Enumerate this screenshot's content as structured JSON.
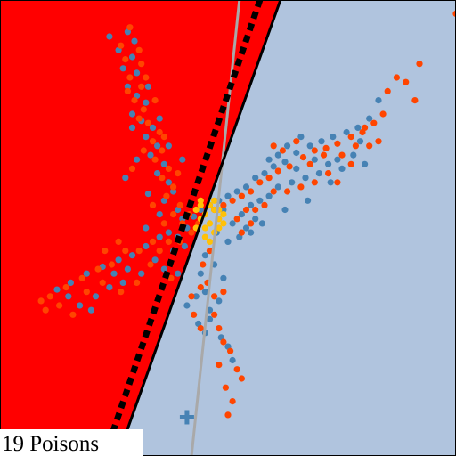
{
  "chart_data": {
    "type": "scatter",
    "title": "",
    "xlabel": "",
    "ylabel": "",
    "xlim": [
      -1,
      1
    ],
    "ylim": [
      -1,
      1
    ],
    "grid": false,
    "legend": "none",
    "annotation": "19 Poisons",
    "colors": {
      "region_left": "#ff0000",
      "region_right": "#b0c4de",
      "class_a": "#4682b4",
      "class_b": "#ff4500",
      "poison": "#ffc107",
      "boundary": "#000000",
      "dashed_boundary": "#000000",
      "reference_line": "#a9a9a9",
      "target_marker": "#4682b4"
    },
    "decision_boundary": {
      "p1": [
        -0.44,
        -0.88
      ],
      "p2": [
        0.23,
        1.0
      ]
    },
    "dashed_boundary": {
      "p1": [
        -0.5,
        -0.88
      ],
      "p2": [
        0.14,
        1.0
      ]
    },
    "reference_line": {
      "p1": [
        -0.16,
        -1.0
      ],
      "p2": [
        0.05,
        1.0
      ]
    },
    "target_point": {
      "x": -0.18,
      "y": -0.83,
      "marker": "plus"
    },
    "series": [
      {
        "name": "",
        "marker": "circle",
        "points": [
          [
            -0.52,
            0.84
          ],
          [
            -0.44,
            0.86
          ],
          [
            -0.41,
            0.82
          ],
          [
            -0.48,
            0.78
          ],
          [
            -0.42,
            0.75
          ],
          [
            -0.46,
            0.7
          ],
          [
            -0.4,
            0.68
          ],
          [
            -0.44,
            0.62
          ],
          [
            -0.4,
            0.58
          ],
          [
            -0.36,
            0.55
          ],
          [
            -0.42,
            0.5
          ],
          [
            -0.38,
            0.47
          ],
          [
            -0.33,
            0.44
          ],
          [
            -0.36,
            0.4
          ],
          [
            -0.31,
            0.36
          ],
          [
            -0.34,
            0.32
          ],
          [
            -0.28,
            0.28
          ],
          [
            -0.31,
            0.24
          ],
          [
            -0.26,
            0.2
          ],
          [
            -0.24,
            0.16
          ],
          [
            -0.28,
            0.12
          ],
          [
            -0.22,
            0.08
          ],
          [
            -0.2,
            0.04
          ],
          [
            -0.18,
            0.0
          ],
          [
            -0.22,
            -0.04
          ],
          [
            -0.19,
            -0.08
          ],
          [
            -0.24,
            -0.1
          ],
          [
            -0.3,
            -0.04
          ],
          [
            -0.36,
            -0.08
          ],
          [
            -0.42,
            -0.12
          ],
          [
            -0.48,
            -0.14
          ],
          [
            -0.55,
            -0.17
          ],
          [
            -0.62,
            -0.2
          ],
          [
            -0.69,
            -0.24
          ],
          [
            -0.75,
            -0.27
          ],
          [
            -0.36,
            0.0
          ],
          [
            -0.32,
            -0.14
          ],
          [
            -0.28,
            -0.18
          ],
          [
            -0.22,
            -0.2
          ],
          [
            -0.38,
            -0.2
          ],
          [
            -0.46,
            -0.24
          ],
          [
            -0.52,
            -0.26
          ],
          [
            -0.58,
            -0.3
          ],
          [
            -0.5,
            -0.2
          ],
          [
            -0.44,
            -0.18
          ],
          [
            -0.15,
            0.05
          ],
          [
            -0.12,
            0.08
          ],
          [
            -0.08,
            0.1
          ],
          [
            -0.04,
            0.12
          ],
          [
            0.0,
            0.14
          ],
          [
            0.04,
            0.16
          ],
          [
            0.08,
            0.18
          ],
          [
            0.12,
            0.22
          ],
          [
            0.16,
            0.24
          ],
          [
            0.2,
            0.27
          ],
          [
            0.25,
            0.29
          ],
          [
            0.3,
            0.33
          ],
          [
            0.36,
            0.36
          ],
          [
            0.41,
            0.38
          ],
          [
            0.46,
            0.4
          ],
          [
            0.52,
            0.42
          ],
          [
            0.57,
            0.44
          ],
          [
            0.62,
            0.48
          ],
          [
            0.66,
            0.56
          ],
          [
            0.02,
            0.02
          ],
          [
            0.06,
            0.06
          ],
          [
            0.1,
            0.1
          ],
          [
            0.14,
            0.12
          ],
          [
            0.18,
            0.14
          ],
          [
            0.22,
            0.18
          ],
          [
            0.28,
            0.2
          ],
          [
            0.34,
            0.22
          ],
          [
            0.4,
            0.24
          ],
          [
            0.48,
            0.3
          ],
          [
            0.55,
            0.32
          ],
          [
            0.6,
            0.28
          ],
          [
            0.45,
            0.2
          ],
          [
            0.35,
            0.12
          ],
          [
            0.25,
            0.08
          ],
          [
            0.15,
            0.02
          ],
          [
            0.1,
            -0.02
          ],
          [
            0.05,
            -0.04
          ],
          [
            0.0,
            -0.06
          ],
          [
            -0.05,
            -0.02
          ],
          [
            -0.1,
            -0.12
          ],
          [
            -0.12,
            -0.2
          ],
          [
            -0.1,
            -0.28
          ],
          [
            -0.08,
            -0.36
          ],
          [
            -0.14,
            -0.3
          ],
          [
            -0.18,
            -0.34
          ],
          [
            -0.13,
            -0.42
          ],
          [
            -0.1,
            -0.46
          ],
          [
            -0.08,
            -0.4
          ],
          [
            -0.04,
            -0.32
          ],
          [
            -0.02,
            -0.22
          ],
          [
            -0.06,
            -0.16
          ],
          [
            0.0,
            -0.52
          ],
          [
            0.02,
            -0.58
          ],
          [
            -0.03,
            -0.48
          ],
          [
            -0.42,
            0.44
          ],
          [
            -0.35,
            0.62
          ],
          [
            -0.3,
            0.48
          ],
          [
            -0.26,
            0.36
          ],
          [
            -0.4,
            0.3
          ],
          [
            -0.45,
            0.22
          ],
          [
            -0.2,
            0.3
          ],
          [
            -0.35,
            0.15
          ],
          [
            -0.3,
            0.06
          ],
          [
            -0.26,
            -0.02
          ],
          [
            -0.6,
            -0.36
          ],
          [
            -0.65,
            -0.34
          ],
          [
            -0.7,
            -0.3
          ],
          [
            0.32,
            0.4
          ],
          [
            0.26,
            0.36
          ],
          [
            0.22,
            0.32
          ],
          [
            0.18,
            0.3
          ],
          [
            0.38,
            0.3
          ],
          [
            0.44,
            0.28
          ],
          [
            0.5,
            0.26
          ],
          [
            0.58,
            0.38
          ],
          [
            0.3,
            0.26
          ],
          [
            -0.02,
            0.08
          ],
          [
            0.08,
            0.0
          ],
          [
            0.12,
            0.04
          ]
        ]
      },
      {
        "name": "",
        "marker": "circle",
        "points": [
          [
            -0.47,
            0.8
          ],
          [
            -0.43,
            0.88
          ],
          [
            -0.39,
            0.78
          ],
          [
            -0.45,
            0.74
          ],
          [
            -0.38,
            0.72
          ],
          [
            -0.43,
            0.66
          ],
          [
            -0.38,
            0.62
          ],
          [
            -0.41,
            0.56
          ],
          [
            -0.37,
            0.52
          ],
          [
            -0.39,
            0.48
          ],
          [
            -0.35,
            0.46
          ],
          [
            -0.3,
            0.42
          ],
          [
            -0.33,
            0.38
          ],
          [
            -0.29,
            0.34
          ],
          [
            -0.32,
            0.3
          ],
          [
            -0.26,
            0.26
          ],
          [
            -0.29,
            0.22
          ],
          [
            -0.24,
            0.18
          ],
          [
            -0.27,
            0.14
          ],
          [
            -0.21,
            0.1
          ],
          [
            -0.24,
            0.06
          ],
          [
            -0.17,
            0.06
          ],
          [
            -0.2,
            0.02
          ],
          [
            -0.16,
            -0.02
          ],
          [
            -0.21,
            -0.06
          ],
          [
            -0.26,
            -0.06
          ],
          [
            -0.33,
            -0.06
          ],
          [
            -0.39,
            -0.1
          ],
          [
            -0.45,
            -0.1
          ],
          [
            -0.51,
            -0.16
          ],
          [
            -0.57,
            -0.18
          ],
          [
            -0.64,
            -0.22
          ],
          [
            -0.71,
            -0.26
          ],
          [
            -0.78,
            -0.3
          ],
          [
            -0.82,
            -0.32
          ],
          [
            -0.34,
            -0.16
          ],
          [
            -0.3,
            -0.1
          ],
          [
            -0.25,
            -0.22
          ],
          [
            -0.4,
            -0.24
          ],
          [
            -0.47,
            -0.28
          ],
          [
            -0.55,
            -0.24
          ],
          [
            -0.62,
            -0.28
          ],
          [
            -0.13,
            0.02
          ],
          [
            -0.1,
            0.06
          ],
          [
            -0.06,
            0.08
          ],
          [
            -0.02,
            0.1
          ],
          [
            0.02,
            0.12
          ],
          [
            0.06,
            0.14
          ],
          [
            0.1,
            0.16
          ],
          [
            0.14,
            0.2
          ],
          [
            0.18,
            0.22
          ],
          [
            0.22,
            0.25
          ],
          [
            0.27,
            0.27
          ],
          [
            0.33,
            0.31
          ],
          [
            0.38,
            0.34
          ],
          [
            0.43,
            0.35
          ],
          [
            0.48,
            0.37
          ],
          [
            0.54,
            0.4
          ],
          [
            0.59,
            0.42
          ],
          [
            0.64,
            0.46
          ],
          [
            0.68,
            0.5
          ],
          [
            0.7,
            0.6
          ],
          [
            0.74,
            0.66
          ],
          [
            0.82,
            0.56
          ],
          [
            0.84,
            0.72
          ],
          [
            0.04,
            0.04
          ],
          [
            0.08,
            0.08
          ],
          [
            0.12,
            0.08
          ],
          [
            0.16,
            0.1
          ],
          [
            0.2,
            0.16
          ],
          [
            0.26,
            0.16
          ],
          [
            0.32,
            0.18
          ],
          [
            0.38,
            0.2
          ],
          [
            0.44,
            0.24
          ],
          [
            0.5,
            0.32
          ],
          [
            0.56,
            0.36
          ],
          [
            0.62,
            0.36
          ],
          [
            0.66,
            0.38
          ],
          [
            -0.08,
            -0.1
          ],
          [
            -0.11,
            -0.16
          ],
          [
            -0.09,
            -0.24
          ],
          [
            -0.06,
            -0.3
          ],
          [
            -0.12,
            -0.26
          ],
          [
            -0.16,
            -0.3
          ],
          [
            -0.15,
            -0.38
          ],
          [
            -0.12,
            -0.44
          ],
          [
            -0.06,
            -0.38
          ],
          [
            -0.02,
            -0.28
          ],
          [
            -0.04,
            -0.44
          ],
          [
            -0.02,
            -0.5
          ],
          [
            0.01,
            -0.54
          ],
          [
            0.04,
            -0.62
          ],
          [
            0.06,
            -0.66
          ],
          [
            -0.04,
            -0.6
          ],
          [
            -0.01,
            -0.7
          ],
          [
            0.02,
            -0.76
          ],
          [
            0.0,
            -0.82
          ],
          [
            -0.44,
            0.6
          ],
          [
            -0.36,
            0.66
          ],
          [
            -0.32,
            0.56
          ],
          [
            -0.28,
            0.4
          ],
          [
            -0.37,
            0.34
          ],
          [
            -0.42,
            0.26
          ],
          [
            -0.22,
            0.24
          ],
          [
            -0.33,
            0.1
          ],
          [
            -0.28,
            0.02
          ],
          [
            -0.68,
            -0.38
          ],
          [
            -0.74,
            -0.34
          ],
          [
            -0.8,
            -0.36
          ],
          [
            -0.48,
            -0.06
          ],
          [
            -0.54,
            -0.1
          ],
          [
            0.3,
            0.38
          ],
          [
            0.24,
            0.34
          ],
          [
            0.2,
            0.36
          ],
          [
            0.36,
            0.28
          ],
          [
            0.42,
            0.32
          ],
          [
            0.48,
            0.2
          ],
          [
            0.54,
            0.28
          ],
          [
            0.6,
            0.44
          ],
          [
            1.0,
            0.94
          ],
          [
            0.78,
            0.64
          ],
          [
            0.06,
            -0.02
          ],
          [
            0.1,
            0.02
          ]
        ]
      },
      {
        "name": "",
        "marker": "circle",
        "points": [
          [
            -0.12,
            0.12
          ],
          [
            -0.1,
            0.06
          ],
          [
            -0.08,
            0.02
          ],
          [
            -0.06,
            0.08
          ],
          [
            -0.04,
            0.04
          ],
          [
            -0.1,
            0.0
          ],
          [
            -0.14,
            0.08
          ],
          [
            -0.06,
            -0.02
          ],
          [
            -0.02,
            0.06
          ],
          [
            -0.12,
            0.04
          ],
          [
            -0.08,
            0.1
          ],
          [
            -0.04,
            0.0
          ],
          [
            -0.1,
            -0.04
          ],
          [
            -0.06,
            0.12
          ],
          [
            -0.14,
            0.0
          ],
          [
            -0.02,
            0.02
          ],
          [
            -0.08,
            -0.06
          ],
          [
            -0.12,
            0.1
          ],
          [
            -0.04,
            0.08
          ]
        ]
      }
    ]
  }
}
